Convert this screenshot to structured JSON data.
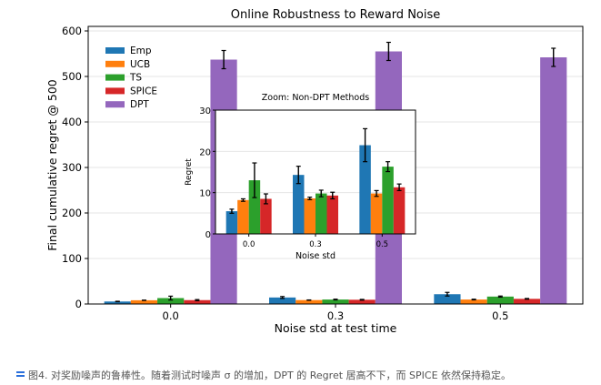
{
  "chart_data": [
    {
      "type": "bar",
      "title": "Online Robustness to Reward Noise",
      "xlabel": "Noise std at test time",
      "ylabel": "Final cumulative regret @ 500",
      "categories": [
        "0.0",
        "0.3",
        "0.5"
      ],
      "ylim": [
        0,
        610
      ],
      "yticks": [
        "0",
        "100",
        "200",
        "300",
        "400",
        "500",
        "600"
      ],
      "grid": true,
      "legend_position": "upper-left",
      "series": [
        {
          "name": "Emp",
          "color": "#1f77b4",
          "values": [
            5.5,
            14.3,
            21.5
          ],
          "errors": [
            0.5,
            2.1,
            4.0
          ]
        },
        {
          "name": "UCB",
          "color": "#ff7f0e",
          "values": [
            8.2,
            8.6,
            9.8
          ],
          "errors": [
            0.3,
            0.3,
            0.7
          ]
        },
        {
          "name": "TS",
          "color": "#2ca02c",
          "values": [
            13.0,
            9.8,
            16.3
          ],
          "errors": [
            4.2,
            0.8,
            1.2
          ]
        },
        {
          "name": "SPICE",
          "color": "#d62728",
          "values": [
            8.5,
            9.3,
            11.3
          ],
          "errors": [
            1.2,
            0.8,
            0.8
          ]
        },
        {
          "name": "DPT",
          "color": "#9467bd",
          "values": [
            537,
            555,
            542
          ],
          "errors": [
            20,
            20,
            20
          ]
        }
      ]
    },
    {
      "type": "bar",
      "title": "Zoom: Non-DPT Methods",
      "xlabel": "Noise std",
      "ylabel": "Regret",
      "categories": [
        "0.0",
        "0.3",
        "0.5"
      ],
      "ylim": [
        0,
        30
      ],
      "yticks": [
        "0",
        "10",
        "20",
        "30"
      ],
      "series": [
        {
          "name": "Emp",
          "color": "#1f77b4",
          "values": [
            5.5,
            14.3,
            21.5
          ],
          "errors": [
            0.5,
            2.1,
            4.0
          ]
        },
        {
          "name": "UCB",
          "color": "#ff7f0e",
          "values": [
            8.2,
            8.6,
            9.8
          ],
          "errors": [
            0.3,
            0.3,
            0.7
          ]
        },
        {
          "name": "TS",
          "color": "#2ca02c",
          "values": [
            13.0,
            9.8,
            16.3
          ],
          "errors": [
            4.2,
            0.8,
            1.2
          ]
        },
        {
          "name": "SPICE",
          "color": "#d62728",
          "values": [
            8.5,
            9.3,
            11.3
          ],
          "errors": [
            1.2,
            0.8,
            0.8
          ]
        }
      ]
    }
  ],
  "caption": {
    "icon": "list-icon",
    "text": "图4. 对奖励噪声的鲁棒性。随着测试时噪声 σ 的增加，DPT 的 Regret 居高不下，而 SPICE 依然保持稳定。"
  }
}
